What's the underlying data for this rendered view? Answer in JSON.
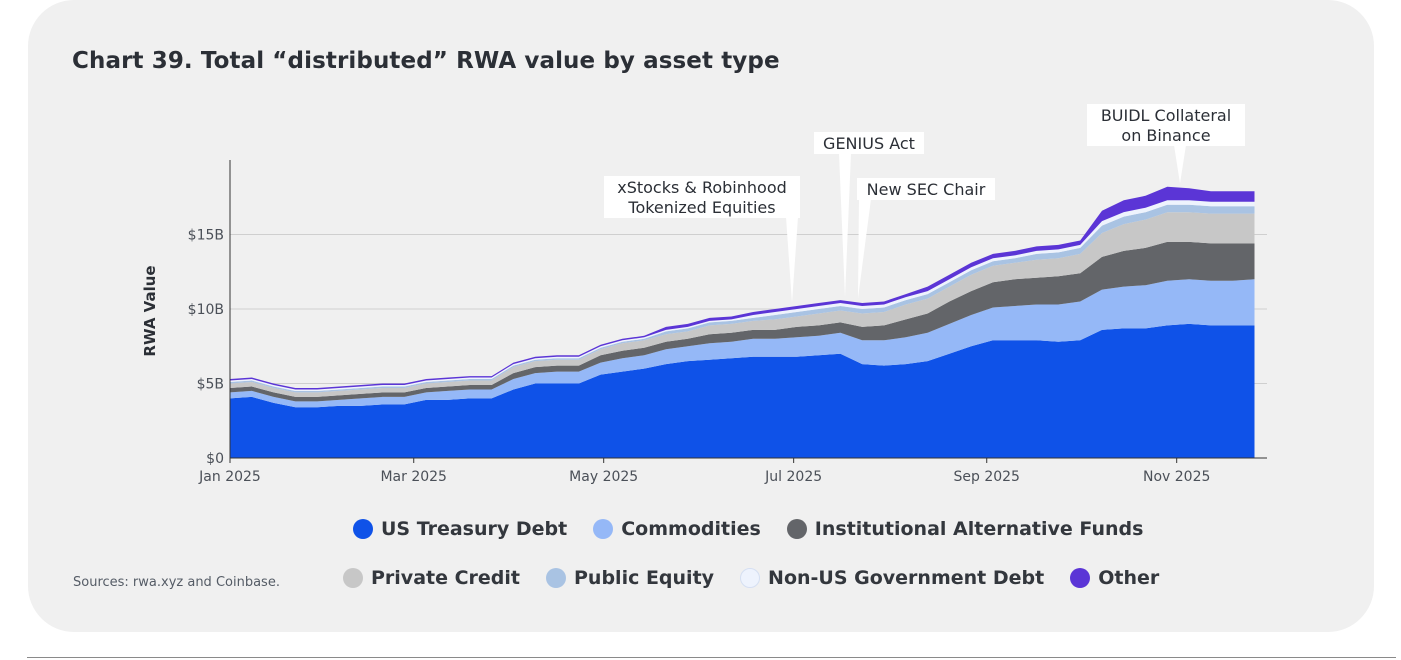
{
  "chart_data": {
    "type": "area",
    "title": "Chart 39. Total “distributed” RWA value by asset type",
    "ylabel": "RWA Value",
    "xlabel": "",
    "ylim": [
      0,
      20
    ],
    "y_unit": "billions USD",
    "x_range": [
      "2025-01-01",
      "2025-11-30"
    ],
    "yticks": [
      {
        "value": 0,
        "label": "$0"
      },
      {
        "value": 5,
        "label": "$5B"
      },
      {
        "value": 10,
        "label": "$10B"
      },
      {
        "value": 15,
        "label": "$15B"
      }
    ],
    "xticks": [
      {
        "value": "2025-01-01",
        "label": "Jan 2025"
      },
      {
        "value": "2025-03-01",
        "label": "Mar 2025"
      },
      {
        "value": "2025-05-01",
        "label": "May 2025"
      },
      {
        "value": "2025-07-01",
        "label": "Jul 2025"
      },
      {
        "value": "2025-09-01",
        "label": "Sep 2025"
      },
      {
        "value": "2025-11-01",
        "label": "Nov 2025"
      }
    ],
    "grid": "horizontal",
    "stacked": true,
    "x": [
      "2025-01-01",
      "2025-01-08",
      "2025-01-15",
      "2025-01-22",
      "2025-01-29",
      "2025-02-05",
      "2025-02-12",
      "2025-02-19",
      "2025-02-26",
      "2025-03-05",
      "2025-03-12",
      "2025-03-19",
      "2025-03-26",
      "2025-04-02",
      "2025-04-09",
      "2025-04-16",
      "2025-04-23",
      "2025-04-30",
      "2025-05-07",
      "2025-05-14",
      "2025-05-21",
      "2025-05-28",
      "2025-06-04",
      "2025-06-11",
      "2025-06-18",
      "2025-06-25",
      "2025-07-02",
      "2025-07-09",
      "2025-07-16",
      "2025-07-23",
      "2025-07-30",
      "2025-08-06",
      "2025-08-13",
      "2025-08-20",
      "2025-08-27",
      "2025-09-03",
      "2025-09-10",
      "2025-09-17",
      "2025-09-24",
      "2025-10-01",
      "2025-10-08",
      "2025-10-15",
      "2025-10-22",
      "2025-10-29",
      "2025-11-05",
      "2025-11-12",
      "2025-11-19",
      "2025-11-26"
    ],
    "series": [
      {
        "name": "US Treasury Debt",
        "color": "#0f52e8",
        "values": [
          4.0,
          4.1,
          3.7,
          3.4,
          3.4,
          3.5,
          3.5,
          3.6,
          3.6,
          3.9,
          3.9,
          4.0,
          4.0,
          4.6,
          5.0,
          5.0,
          5.0,
          5.6,
          5.8,
          6.0,
          6.3,
          6.5,
          6.6,
          6.7,
          6.8,
          6.8,
          6.8,
          6.9,
          7.0,
          6.3,
          6.2,
          6.3,
          6.5,
          7.0,
          7.5,
          7.9,
          7.9,
          7.9,
          7.8,
          7.9,
          8.6,
          8.7,
          8.7,
          8.9,
          9.0,
          8.9,
          8.9,
          8.9
        ]
      },
      {
        "name": "Commodities",
        "color": "#95b8f7",
        "values": [
          0.4,
          0.4,
          0.4,
          0.4,
          0.4,
          0.4,
          0.5,
          0.5,
          0.5,
          0.5,
          0.6,
          0.6,
          0.6,
          0.7,
          0.7,
          0.8,
          0.8,
          0.8,
          0.9,
          0.9,
          1.0,
          1.0,
          1.1,
          1.1,
          1.2,
          1.2,
          1.3,
          1.3,
          1.4,
          1.6,
          1.7,
          1.8,
          1.9,
          2.0,
          2.1,
          2.2,
          2.3,
          2.4,
          2.5,
          2.6,
          2.7,
          2.8,
          2.9,
          3.0,
          3.0,
          3.0,
          3.0,
          3.1
        ]
      },
      {
        "name": "Institutional Alternative Funds",
        "color": "#636569",
        "values": [
          0.3,
          0.3,
          0.3,
          0.3,
          0.3,
          0.3,
          0.3,
          0.3,
          0.3,
          0.3,
          0.3,
          0.3,
          0.3,
          0.4,
          0.4,
          0.4,
          0.4,
          0.5,
          0.5,
          0.5,
          0.5,
          0.5,
          0.6,
          0.6,
          0.6,
          0.6,
          0.7,
          0.7,
          0.7,
          0.9,
          1.0,
          1.2,
          1.3,
          1.5,
          1.6,
          1.7,
          1.8,
          1.8,
          1.9,
          1.9,
          2.2,
          2.4,
          2.5,
          2.6,
          2.5,
          2.5,
          2.5,
          2.4
        ]
      },
      {
        "name": "Private Credit",
        "color": "#c7c7c7",
        "values": [
          0.3,
          0.3,
          0.3,
          0.3,
          0.3,
          0.3,
          0.3,
          0.3,
          0.3,
          0.3,
          0.3,
          0.3,
          0.3,
          0.4,
          0.4,
          0.4,
          0.4,
          0.4,
          0.5,
          0.5,
          0.5,
          0.5,
          0.6,
          0.6,
          0.6,
          0.7,
          0.7,
          0.8,
          0.8,
          0.9,
          0.9,
          1.0,
          1.0,
          1.0,
          1.1,
          1.1,
          1.1,
          1.2,
          1.2,
          1.3,
          1.6,
          1.8,
          1.9,
          2.0,
          2.0,
          2.0,
          2.0,
          2.0
        ]
      },
      {
        "name": "Public Equity",
        "color": "#a9c3e3",
        "values": [
          0.1,
          0.1,
          0.1,
          0.1,
          0.1,
          0.1,
          0.1,
          0.1,
          0.1,
          0.1,
          0.1,
          0.1,
          0.1,
          0.1,
          0.1,
          0.1,
          0.1,
          0.1,
          0.1,
          0.1,
          0.2,
          0.2,
          0.2,
          0.2,
          0.2,
          0.3,
          0.3,
          0.3,
          0.3,
          0.3,
          0.3,
          0.3,
          0.3,
          0.3,
          0.3,
          0.3,
          0.3,
          0.4,
          0.4,
          0.4,
          0.5,
          0.5,
          0.5,
          0.5,
          0.5,
          0.5,
          0.5,
          0.5
        ]
      },
      {
        "name": "Non-US Government Debt",
        "color": "#eef3fd",
        "values": [
          0.1,
          0.1,
          0.1,
          0.1,
          0.1,
          0.1,
          0.1,
          0.1,
          0.1,
          0.1,
          0.1,
          0.1,
          0.1,
          0.1,
          0.1,
          0.1,
          0.1,
          0.1,
          0.1,
          0.1,
          0.1,
          0.1,
          0.1,
          0.1,
          0.2,
          0.2,
          0.2,
          0.2,
          0.2,
          0.2,
          0.2,
          0.2,
          0.2,
          0.2,
          0.2,
          0.2,
          0.2,
          0.2,
          0.2,
          0.2,
          0.3,
          0.3,
          0.3,
          0.3,
          0.3,
          0.3,
          0.3,
          0.3
        ]
      },
      {
        "name": "Other",
        "color": "#5b35d6",
        "values": [
          0.1,
          0.1,
          0.1,
          0.1,
          0.1,
          0.1,
          0.1,
          0.1,
          0.1,
          0.1,
          0.1,
          0.1,
          0.1,
          0.1,
          0.1,
          0.1,
          0.1,
          0.1,
          0.1,
          0.1,
          0.2,
          0.2,
          0.2,
          0.2,
          0.2,
          0.2,
          0.2,
          0.2,
          0.2,
          0.2,
          0.2,
          0.2,
          0.3,
          0.3,
          0.3,
          0.3,
          0.3,
          0.3,
          0.3,
          0.3,
          0.7,
          0.8,
          0.8,
          0.9,
          0.8,
          0.7,
          0.7,
          0.7
        ]
      }
    ],
    "annotations": [
      {
        "lines": [
          "xStocks & Robinhood",
          "Tokenized Equities"
        ],
        "x": "2025-06-30"
      },
      {
        "lines": [
          "GENIUS Act"
        ],
        "x": "2025-07-18"
      },
      {
        "lines": [
          "New SEC Chair"
        ],
        "x": "2025-07-21"
      },
      {
        "lines": [
          "BUIDL Collateral",
          "on Binance"
        ],
        "x": "2025-11-01"
      }
    ]
  },
  "legend": {
    "row1": [
      {
        "label": "US Treasury Debt",
        "color": "#0f52e8"
      },
      {
        "label": "Commodities",
        "color": "#95b8f7"
      },
      {
        "label": "Institutional Alternative Funds",
        "color": "#636569"
      }
    ],
    "row2": [
      {
        "label": "Private Credit",
        "color": "#c7c7c7"
      },
      {
        "label": "Public Equity",
        "color": "#a9c3e3"
      },
      {
        "label": "Non-US Government Debt",
        "color": "#eef3fd"
      },
      {
        "label": "Other",
        "color": "#5b35d6"
      }
    ]
  },
  "source": "Sources: rwa.xyz and Coinbase."
}
